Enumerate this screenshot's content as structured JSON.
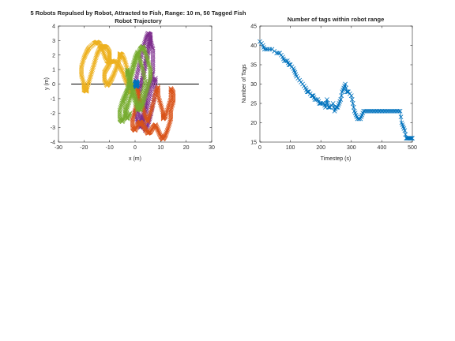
{
  "chart_data": [
    {
      "type": "scatter",
      "title": "5 Robots Repulsed by Robot, Attracted to Fish, Range: 10 m, 50 Tagged Fish",
      "subtitle": "Robot Trajectory",
      "xlabel": "x (m)",
      "ylabel": "y (m)",
      "xlim": [
        -30,
        30
      ],
      "ylim": [
        -4,
        4
      ],
      "xticks": [
        -30,
        -20,
        -10,
        0,
        10,
        20,
        30
      ],
      "yticks": [
        -4,
        -3,
        -2,
        -1,
        0,
        1,
        2,
        3,
        4
      ],
      "marker": "x",
      "grid": false,
      "reference_line": {
        "x": [
          -25,
          25
        ],
        "y": [
          0,
          0
        ],
        "color": "#000000"
      },
      "series": [
        {
          "color": "#EDB120",
          "x": [
            -3,
            -4,
            -5,
            -6,
            -7,
            -9,
            -10,
            -11,
            -12,
            -13,
            -14,
            -15,
            -16,
            -18,
            -19,
            -20,
            -21,
            -21,
            -20,
            -20,
            -19,
            -19,
            -18,
            -17,
            -16,
            -15,
            -14,
            -13,
            -12,
            -11,
            -10,
            -10,
            -10,
            -11,
            -12,
            -12,
            -11,
            -10,
            -9,
            -8,
            -7,
            -6,
            -6,
            -5,
            -4,
            -3,
            -2,
            -2,
            -2,
            -1,
            0
          ],
          "y": [
            0,
            0.4,
            0.9,
            1.2,
            1.5,
            1.6,
            1.5,
            1.6,
            2.0,
            2.5,
            2.8,
            2.9,
            2.8,
            2.5,
            2.2,
            1.8,
            1.2,
            0.6,
            0.0,
            -0.4,
            -0.5,
            -0.3,
            0.2,
            0.8,
            1.4,
            2.0,
            2.4,
            2.6,
            2.6,
            2.5,
            2.2,
            1.8,
            1.4,
            1.1,
            0.8,
            0.3,
            -0.1,
            0.1,
            0.4,
            0.8,
            1.3,
            1.8,
            2.1,
            2.0,
            1.6,
            1.0,
            0.4,
            -0.2,
            -0.6,
            -0.3,
            0.0
          ]
        },
        {
          "color": "#7E2F8E",
          "x": [
            0,
            1,
            2,
            3,
            4,
            5,
            6,
            6,
            7,
            7,
            7,
            6,
            5,
            4,
            4,
            3,
            3,
            2,
            1,
            1,
            2,
            3,
            4,
            5,
            6,
            6,
            5,
            4,
            3,
            2,
            1,
            0,
            1,
            2,
            3,
            4,
            5,
            6,
            7,
            8,
            8,
            7,
            6,
            5,
            4,
            3
          ],
          "y": [
            0,
            0.8,
            1.6,
            2.4,
            3.0,
            3.5,
            3.4,
            3.0,
            2.4,
            1.6,
            0.8,
            0.2,
            -0.4,
            -1.0,
            -1.6,
            -2.2,
            -2.6,
            -2.4,
            -1.8,
            -1.2,
            -0.4,
            0.6,
            1.6,
            2.6,
            3.2,
            2.8,
            2.0,
            1.2,
            0.4,
            -0.4,
            -1.2,
            -2.0,
            -2.6,
            -3.0,
            -2.8,
            -2.2,
            -1.4,
            -0.6,
            0.2,
            0.4,
            -0.4,
            -1.4,
            -2.2,
            -2.8,
            -3.2,
            -2.6
          ]
        },
        {
          "color": "#D95319",
          "x": [
            0,
            1,
            1,
            0,
            -1,
            -1,
            0,
            1,
            2,
            3,
            4,
            5,
            6,
            7,
            8,
            9,
            10,
            11,
            12,
            13,
            14,
            14,
            15,
            15,
            14,
            14,
            13,
            12,
            11,
            11,
            10,
            9,
            9,
            8,
            7,
            6,
            5,
            4,
            3,
            2,
            1,
            0
          ],
          "y": [
            0,
            -0.6,
            -1.2,
            -1.8,
            -2.4,
            -3.0,
            -3.2,
            -2.8,
            -2.6,
            -2.8,
            -3.1,
            -3.4,
            -3.3,
            -3.0,
            -2.8,
            -3.2,
            -3.6,
            -3.8,
            -3.5,
            -3.0,
            -2.4,
            -1.8,
            -1.2,
            -0.6,
            -0.3,
            -1.0,
            -1.6,
            -2.2,
            -2.4,
            -2.0,
            -1.4,
            -0.8,
            -0.2,
            -0.6,
            -1.4,
            -2.0,
            -2.6,
            -2.2,
            -1.6,
            -1.0,
            -0.4,
            0.0
          ]
        },
        {
          "color": "#77AC30",
          "x": [
            0,
            -1,
            -2,
            -3,
            -4,
            -5,
            -6,
            -6,
            -5,
            -4,
            -3,
            -2,
            -1,
            0,
            1,
            2,
            3,
            4,
            5,
            6,
            6,
            5,
            4,
            3,
            2,
            1,
            0,
            -1,
            -2,
            -3,
            -3,
            -2,
            -1,
            0,
            1,
            2,
            3,
            4,
            3,
            2,
            1,
            0,
            -1,
            -2,
            -3,
            -4,
            -4,
            -3,
            -2
          ],
          "y": [
            0,
            -0.5,
            -1.0,
            -1.6,
            -2.2,
            -2.6,
            -2.4,
            -1.8,
            -1.2,
            -0.8,
            -0.4,
            0.2,
            0.8,
            1.4,
            2.0,
            2.4,
            2.6,
            2.2,
            1.6,
            1.0,
            0.4,
            -0.2,
            -0.8,
            -1.4,
            -1.8,
            -1.4,
            -0.8,
            -0.2,
            0.4,
            1.0,
            0.6,
            0.0,
            -0.6,
            -1.2,
            -1.8,
            -1.4,
            -0.6,
            0.2,
            1.0,
            1.6,
            2.2,
            1.8,
            1.2,
            0.4,
            -0.4,
            -1.2,
            -2.0,
            -2.4,
            -2.0
          ]
        },
        {
          "color": "#0072BD",
          "x": [
            0,
            0.5,
            1,
            0.5,
            0
          ],
          "y": [
            0,
            0.2,
            0.0,
            -0.2,
            0
          ]
        }
      ]
    },
    {
      "type": "line",
      "title": "Number of tags within robot range",
      "xlabel": "Timestep (s)",
      "ylabel": "Number of Tags",
      "xlim": [
        0,
        500
      ],
      "ylim": [
        15,
        45
      ],
      "xticks": [
        0,
        100,
        200,
        300,
        400,
        500
      ],
      "yticks": [
        15,
        20,
        25,
        30,
        35,
        40,
        45
      ],
      "marker": "x",
      "color": "#0072BD",
      "grid": false,
      "x": [
        0,
        10,
        15,
        25,
        40,
        55,
        65,
        75,
        80,
        90,
        95,
        100,
        110,
        115,
        120,
        130,
        140,
        150,
        155,
        160,
        170,
        175,
        180,
        190,
        195,
        200,
        210,
        215,
        220,
        225,
        230,
        240,
        245,
        250,
        255,
        260,
        265,
        270,
        275,
        280,
        285,
        290,
        300,
        305,
        310,
        315,
        320,
        330,
        335,
        340,
        350,
        360,
        370,
        380,
        390,
        400,
        410,
        420,
        430,
        440,
        450,
        460,
        465,
        470,
        475,
        480,
        485,
        490,
        495,
        500
      ],
      "y": [
        41,
        40,
        39,
        39,
        39,
        38,
        38,
        37,
        36,
        36,
        35,
        35,
        34,
        33,
        32,
        31,
        30,
        29,
        28,
        28,
        27,
        27,
        26,
        26,
        25,
        25,
        25,
        24,
        26,
        24,
        24,
        25,
        23,
        24,
        24,
        25,
        26,
        28,
        29,
        30,
        28,
        28,
        27,
        25,
        23,
        22,
        21,
        21,
        22,
        23,
        23,
        23,
        23,
        23,
        23,
        23,
        23,
        23,
        23,
        23,
        23,
        23,
        20,
        19,
        18,
        16,
        16,
        16,
        16,
        16
      ]
    }
  ]
}
